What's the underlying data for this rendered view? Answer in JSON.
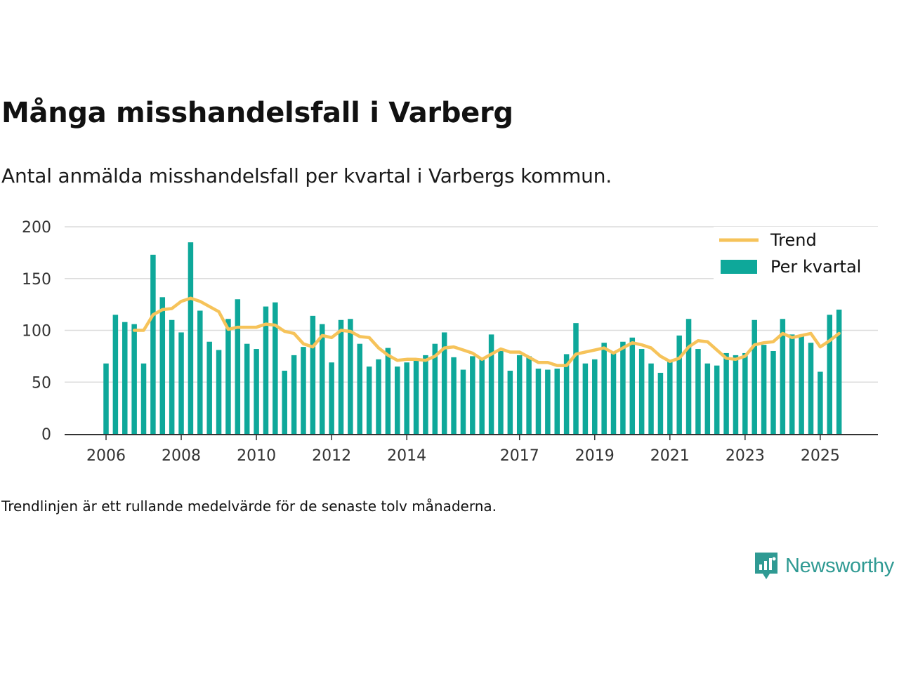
{
  "title": "Många misshandelsfall i Varberg",
  "subtitle": "Antal anmälda misshandelsfall per kvartal i Varbergs kommun.",
  "note": "Trendlinjen är ett rullande medelvärde för de senaste tolv månaderna.",
  "brand": {
    "name": "Newsworthy"
  },
  "colors": {
    "bars": "#0ea89a",
    "trend": "#f6c35a",
    "grid": "#dcdcdc",
    "axis": "#333333",
    "brand": "#2f9a93"
  },
  "chart_data": {
    "type": "bar",
    "title": "Många misshandelsfall i Varberg",
    "xlabel": "",
    "ylabel": "",
    "ylim": [
      0,
      200
    ],
    "yticks": [
      0,
      50,
      100,
      150,
      200
    ],
    "xtick_labels": [
      "2006",
      "2008",
      "2010",
      "2012",
      "2014",
      "2017",
      "2019",
      "2021",
      "2023",
      "2025"
    ],
    "xtick_index": [
      0,
      8,
      16,
      24,
      32,
      44,
      52,
      60,
      68,
      76
    ],
    "legend": {
      "position": "top-right",
      "trend_label": "Trend",
      "bars_label": "Per kvartal"
    },
    "series": [
      {
        "name": "Per kvartal",
        "type": "bar",
        "values": [
          68,
          115,
          108,
          106,
          68,
          173,
          132,
          110,
          98,
          185,
          119,
          89,
          81,
          111,
          130,
          87,
          82,
          123,
          127,
          61,
          76,
          84,
          114,
          106,
          69,
          110,
          111,
          87,
          65,
          72,
          83,
          65,
          69,
          72,
          76,
          87,
          98,
          74,
          62,
          75,
          72,
          96,
          80,
          61,
          76,
          75,
          63,
          62,
          63,
          77,
          107,
          68,
          72,
          88,
          78,
          89,
          93,
          82,
          68,
          59,
          70,
          95,
          111,
          82,
          68,
          66,
          78,
          76,
          78,
          110,
          86,
          80,
          111,
          96,
          95,
          88,
          60,
          115,
          120
        ]
      },
      {
        "name": "Trend",
        "type": "line",
        "start_index": 3,
        "values": [
          100,
          100,
          115,
          120,
          121,
          128,
          131,
          128,
          123,
          118,
          101,
          103,
          103,
          103,
          106,
          105,
          99,
          97,
          87,
          84,
          95,
          93,
          100,
          99,
          94,
          93,
          83,
          76,
          71,
          72,
          72,
          71,
          75,
          83,
          84,
          81,
          78,
          72,
          77,
          82,
          79,
          79,
          74,
          69,
          69,
          66,
          66,
          77,
          79,
          81,
          83,
          78,
          83,
          88,
          86,
          83,
          75,
          70,
          73,
          84,
          90,
          89,
          81,
          73,
          72,
          75,
          86,
          88,
          89,
          97,
          93,
          95,
          97,
          84,
          90,
          97
        ]
      }
    ]
  }
}
